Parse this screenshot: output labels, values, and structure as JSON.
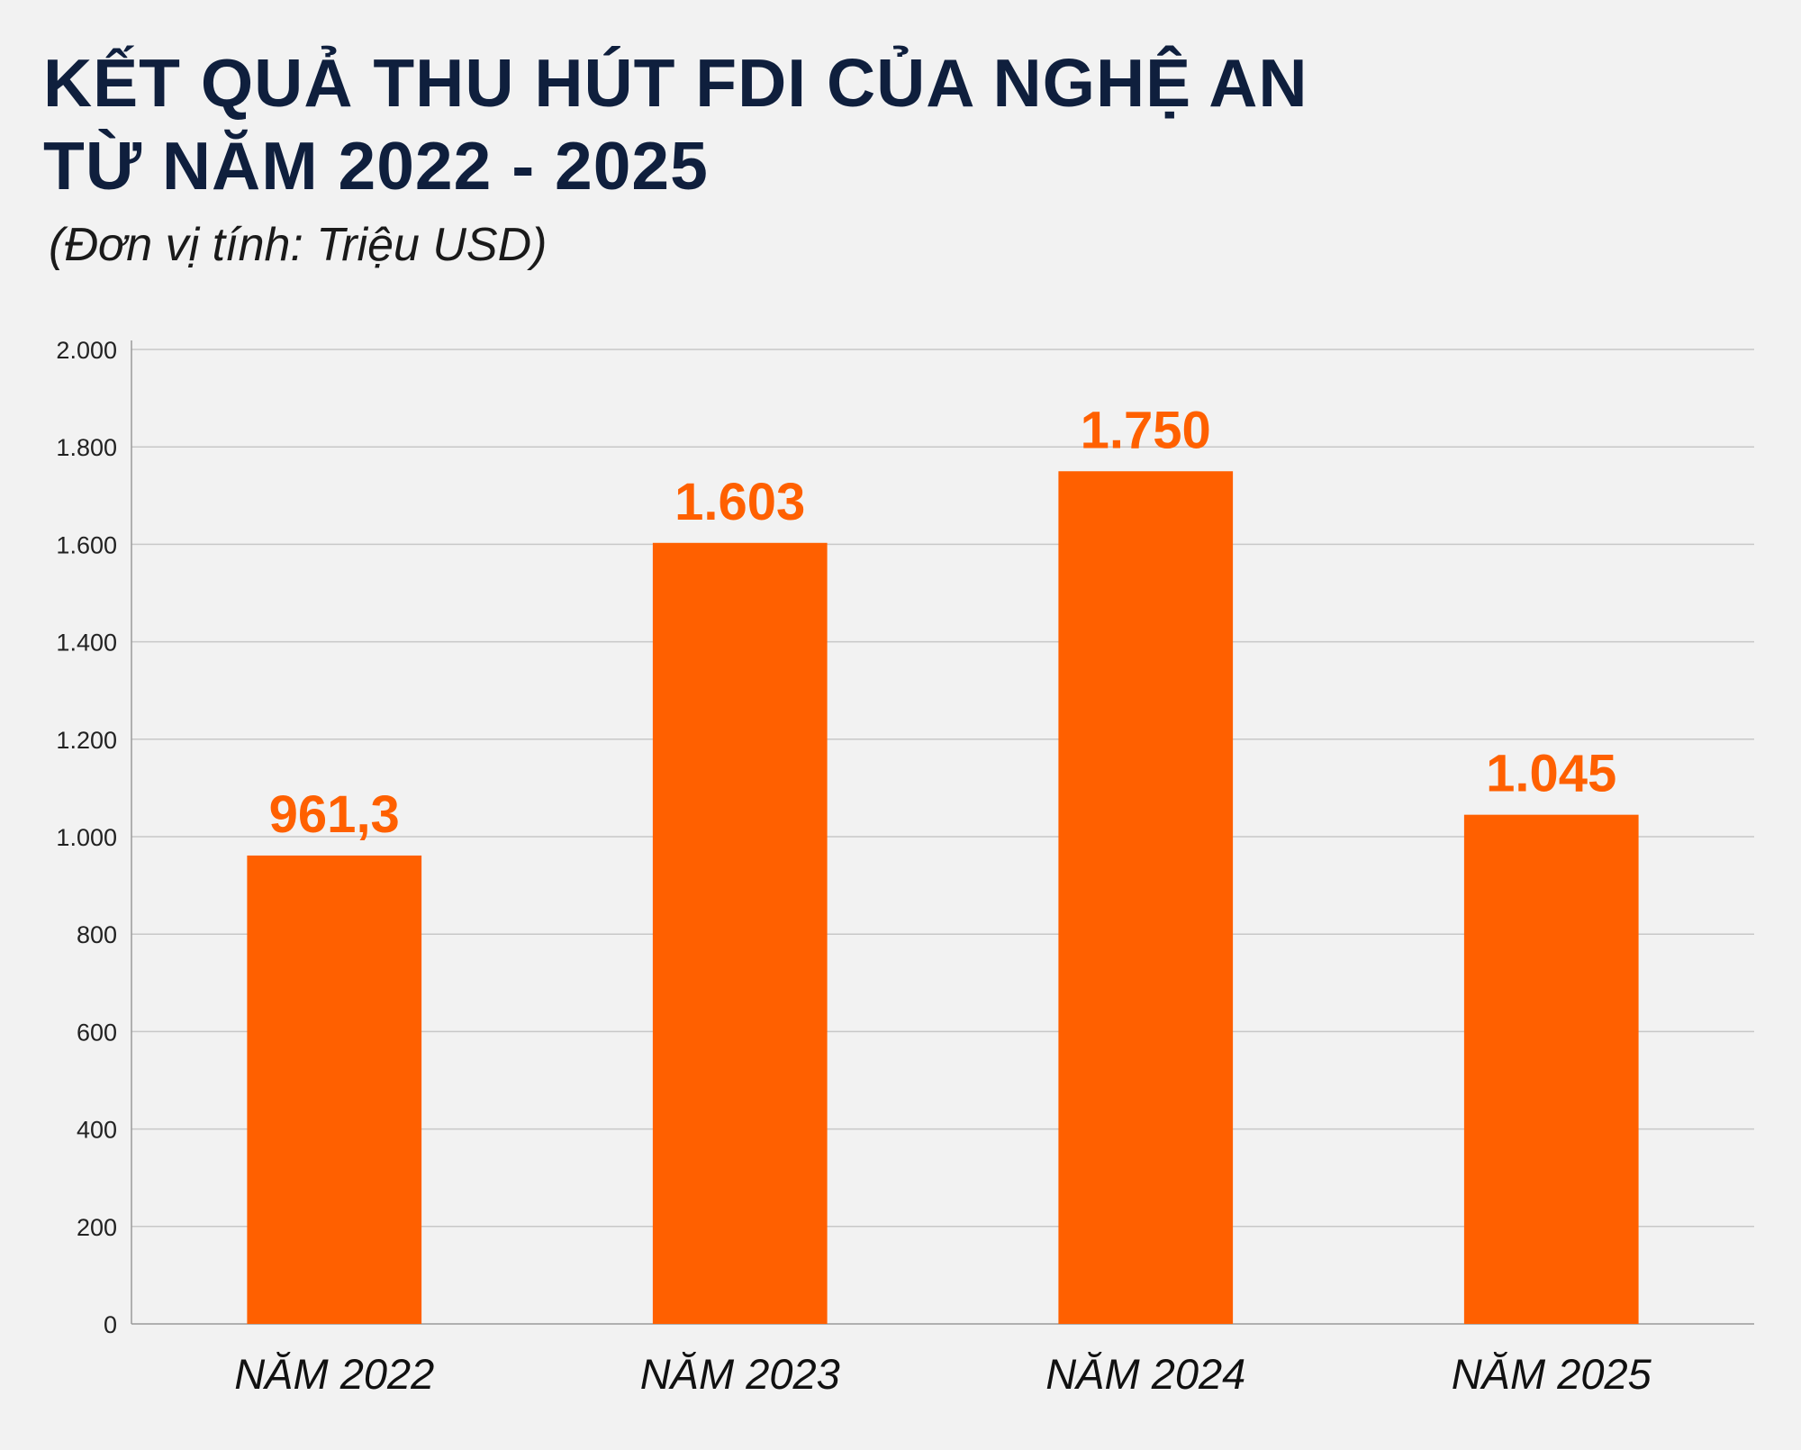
{
  "chart_data": {
    "type": "bar",
    "title": [
      "KẾT QUẢ THU HÚT FDI CỦA NGHỆ AN",
      "TỪ NĂM 2022 - 2025"
    ],
    "subtitle": "(Đơn vị tính: Triệu USD)",
    "categories": [
      "NĂM 2022",
      "NĂM 2023",
      "NĂM 2024",
      "NĂM 2025"
    ],
    "values": [
      961.3,
      1603,
      1750,
      1045
    ],
    "value_labels": [
      "961,3",
      "1.603",
      "1.750",
      "1.045"
    ],
    "ylim": [
      0,
      2000
    ],
    "yticks": [
      0,
      200,
      400,
      600,
      800,
      1000,
      1200,
      1400,
      1600,
      1800,
      2000
    ],
    "ytick_labels": [
      "0",
      "200",
      "400",
      "600",
      "800",
      "1.000",
      "1.200",
      "1.400",
      "1.600",
      "1.800",
      "2.000"
    ],
    "xlabel": "",
    "ylabel": "",
    "grid": true,
    "legend": "none",
    "colors": {
      "bar": "#ff6000",
      "data_label": "#ff6000",
      "grid": "#c8c8c8",
      "axis": "#9a9a9a"
    }
  }
}
